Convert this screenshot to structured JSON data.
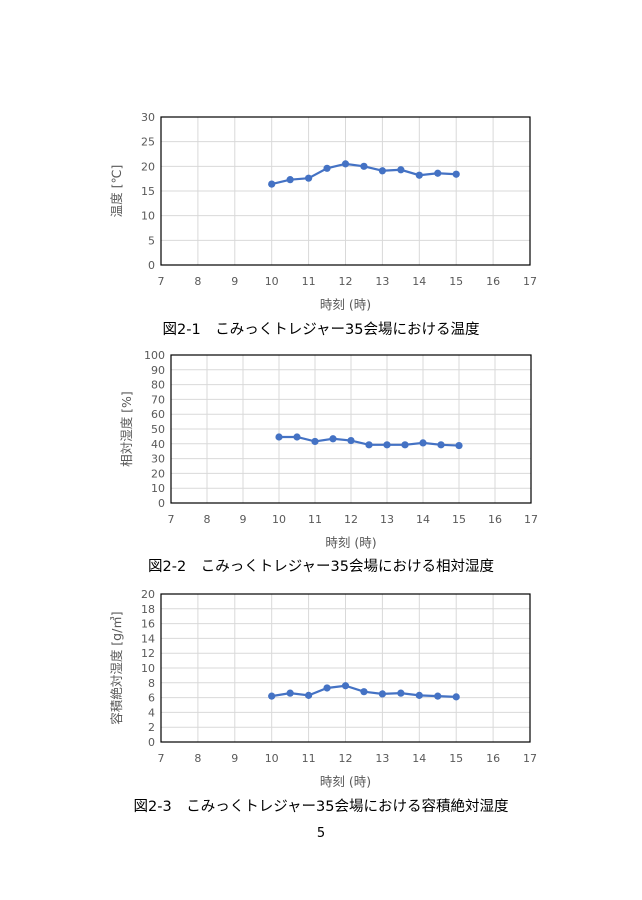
{
  "page": {
    "number": "5"
  },
  "chart_data": [
    {
      "type": "line",
      "caption": "図2-1　こみっくトレジャー35会場における温度",
      "xlabel": "時刻 (時)",
      "ylabel": "温度 [℃]",
      "xlim": [
        7,
        17
      ],
      "ylim": [
        0,
        30
      ],
      "xticks": [
        "7",
        "8",
        "9",
        "10",
        "11",
        "12",
        "13",
        "14",
        "15",
        "16",
        "17"
      ],
      "yticks": [
        "0",
        "5",
        "10",
        "15",
        "20",
        "25",
        "30"
      ],
      "grid": true,
      "color": "#4472C4",
      "series": [
        {
          "x": [
            10,
            10.5,
            11,
            11.5,
            12,
            12.5,
            13,
            13.5,
            14,
            14.5,
            15
          ],
          "y": [
            16.4,
            17.3,
            17.6,
            19.6,
            20.5,
            20.0,
            19.1,
            19.3,
            18.2,
            18.6,
            18.4
          ]
        }
      ]
    },
    {
      "type": "line",
      "caption": "図2-2　こみっくトレジャー35会場における相対湿度",
      "xlabel": "時刻 (時)",
      "ylabel": "相対湿度 [%]",
      "xlim": [
        7,
        17
      ],
      "ylim": [
        0,
        100
      ],
      "xticks": [
        "7",
        "8",
        "9",
        "10",
        "11",
        "12",
        "13",
        "14",
        "15",
        "16",
        "17"
      ],
      "yticks": [
        "0",
        "10",
        "20",
        "30",
        "40",
        "50",
        "60",
        "70",
        "80",
        "90",
        "100"
      ],
      "grid": true,
      "color": "#4472C4",
      "series": [
        {
          "x": [
            10,
            10.5,
            11,
            11.5,
            12,
            12.5,
            13,
            13.5,
            14,
            14.5,
            15
          ],
          "y": [
            44.6,
            44.6,
            41.6,
            43.4,
            42.2,
            39.3,
            39.3,
            39.3,
            40.6,
            39.3,
            38.8
          ]
        }
      ]
    },
    {
      "type": "line",
      "caption": "図2-3　こみっくトレジャー35会場における容積絶対湿度",
      "xlabel": "時刻 (時)",
      "ylabel": "容積絶対湿度 [g/㎥]",
      "xlim": [
        7,
        17
      ],
      "ylim": [
        0,
        20
      ],
      "xticks": [
        "7",
        "8",
        "9",
        "10",
        "11",
        "12",
        "13",
        "14",
        "15",
        "16",
        "17"
      ],
      "yticks": [
        "0",
        "2",
        "4",
        "6",
        "8",
        "10",
        "12",
        "14",
        "16",
        "18",
        "20"
      ],
      "grid": true,
      "color": "#4472C4",
      "series": [
        {
          "x": [
            10,
            10.5,
            11,
            11.5,
            12,
            12.5,
            13,
            13.5,
            14,
            14.5,
            15
          ],
          "y": [
            6.2,
            6.6,
            6.3,
            7.3,
            7.6,
            6.8,
            6.5,
            6.6,
            6.3,
            6.2,
            6.1
          ]
        }
      ]
    }
  ]
}
